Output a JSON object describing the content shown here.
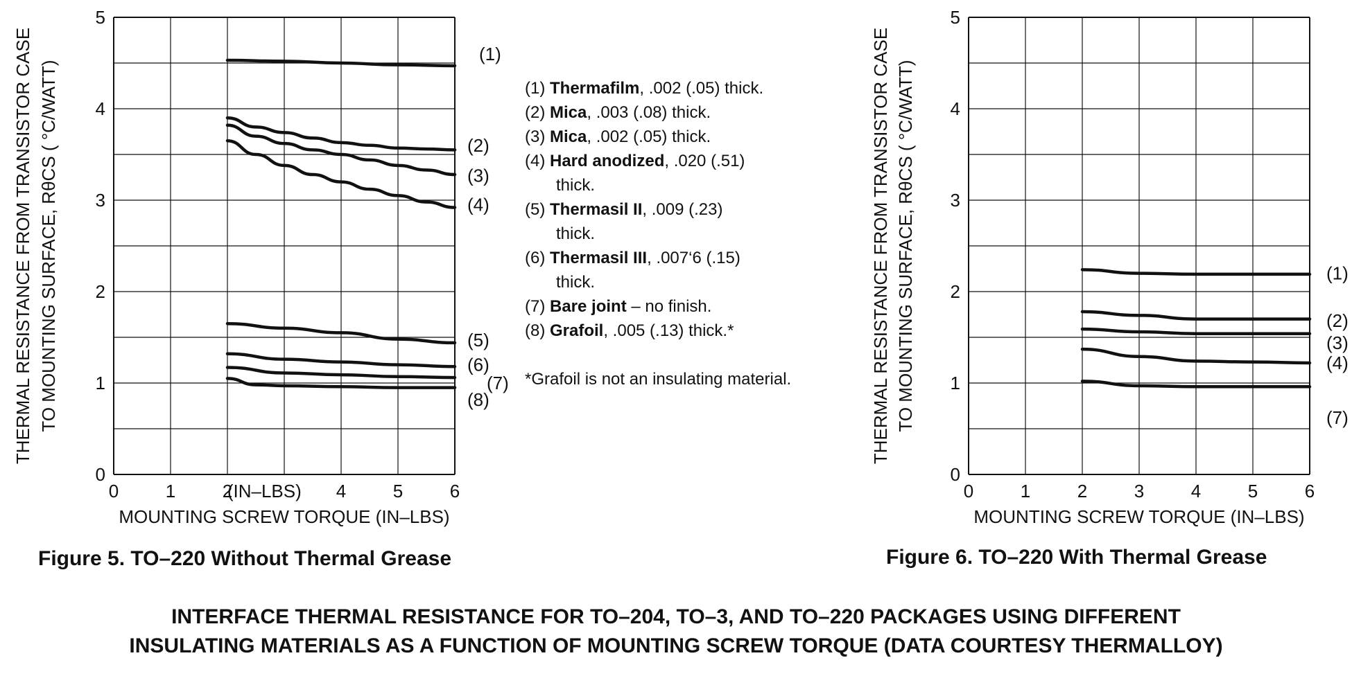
{
  "chart_data": [
    {
      "type": "line",
      "title": "Figure 5. TO–220 Without Thermal Grease",
      "xlabel": "MOUNTING SCREW TORQUE (IN–LBS)",
      "ylabel_line1": "THERMAL RESISTANCE FROM TRANSISTOR CASE",
      "ylabel_line2": "TO MOUNTING SURFACE, RθCS  ( °C/WATT)",
      "inner_label": "(IN–LBS)",
      "xlim": [
        0,
        6
      ],
      "ylim": [
        0,
        5
      ],
      "xticks": [
        "0",
        "1",
        "2",
        "",
        "4",
        "5",
        "6"
      ],
      "yticks": [
        "0",
        "1",
        "2",
        "3",
        "4",
        "5"
      ],
      "grid": true,
      "series": [
        {
          "name": "(1)",
          "x": [
            2,
            3,
            4,
            5,
            6
          ],
          "y": [
            4.53,
            4.52,
            4.5,
            4.48,
            4.47
          ]
        },
        {
          "name": "(2)",
          "x": [
            2,
            2.5,
            3,
            3.5,
            4,
            4.5,
            5,
            5.5,
            6
          ],
          "y": [
            3.9,
            3.8,
            3.74,
            3.68,
            3.63,
            3.6,
            3.57,
            3.56,
            3.55
          ]
        },
        {
          "name": "(3)",
          "x": [
            2,
            2.5,
            3,
            3.5,
            4,
            4.5,
            5,
            5.5,
            6
          ],
          "y": [
            3.82,
            3.7,
            3.62,
            3.55,
            3.5,
            3.44,
            3.38,
            3.33,
            3.28
          ]
        },
        {
          "name": "(4)",
          "x": [
            2,
            2.5,
            3,
            3.5,
            4,
            4.5,
            5,
            5.5,
            6
          ],
          "y": [
            3.65,
            3.5,
            3.38,
            3.28,
            3.2,
            3.12,
            3.05,
            2.98,
            2.92
          ]
        },
        {
          "name": "(5)",
          "x": [
            2,
            3,
            4,
            5,
            6
          ],
          "y": [
            1.65,
            1.6,
            1.55,
            1.48,
            1.44
          ]
        },
        {
          "name": "(6)",
          "x": [
            2,
            3,
            4,
            5,
            6
          ],
          "y": [
            1.32,
            1.26,
            1.23,
            1.2,
            1.18
          ]
        },
        {
          "name": "(7)",
          "x": [
            2,
            3,
            4,
            5,
            6
          ],
          "y": [
            1.17,
            1.11,
            1.09,
            1.07,
            1.06
          ]
        },
        {
          "name": "(8)",
          "x": [
            2,
            2.5,
            3,
            4,
            5,
            6
          ],
          "y": [
            1.05,
            0.98,
            0.97,
            0.96,
            0.95,
            0.95
          ]
        }
      ],
      "series_labels": [
        "(1)",
        "(2)",
        "(3)",
        "(4)",
        "(5)",
        "(6)",
        "(7)",
        "(8)"
      ],
      "label_y": [
        4.6,
        3.6,
        3.27,
        2.95,
        1.47,
        1.2,
        1.0,
        0.82
      ]
    },
    {
      "type": "line",
      "title": "Figure 6. TO–220 With Thermal Grease",
      "xlabel": "MOUNTING SCREW TORQUE (IN–LBS)",
      "ylabel_line1": "THERMAL RESISTANCE FROM TRANSISTOR CASE",
      "ylabel_line2": "TO MOUNTING SURFACE, RθCS  ( °C/WATT)",
      "xlim": [
        0,
        6
      ],
      "ylim": [
        0,
        5
      ],
      "xticks": [
        "0",
        "1",
        "2",
        "3",
        "4",
        "5",
        "6"
      ],
      "yticks": [
        "0",
        "1",
        "2",
        "3",
        "4",
        "5"
      ],
      "grid": true,
      "series": [
        {
          "name": "(1)",
          "x": [
            2,
            3,
            4,
            5,
            6
          ],
          "y": [
            2.24,
            2.2,
            2.19,
            2.19,
            2.19
          ]
        },
        {
          "name": "(2)",
          "x": [
            2,
            3,
            4,
            5,
            6
          ],
          "y": [
            1.78,
            1.74,
            1.7,
            1.7,
            1.7
          ]
        },
        {
          "name": "(3)",
          "x": [
            2,
            3,
            4,
            5,
            6
          ],
          "y": [
            1.59,
            1.56,
            1.54,
            1.54,
            1.54
          ]
        },
        {
          "name": "(4)",
          "x": [
            2,
            3,
            4,
            5,
            6
          ],
          "y": [
            1.37,
            1.29,
            1.24,
            1.23,
            1.22
          ]
        },
        {
          "name": "(7)",
          "x": [
            2,
            3,
            4,
            5,
            6
          ],
          "y": [
            1.02,
            0.97,
            0.96,
            0.96,
            0.96
          ]
        }
      ],
      "series_labels": [
        "(1)",
        "(2)",
        "(3)",
        "(4)",
        "(7)"
      ],
      "label_y": [
        2.2,
        1.68,
        1.44,
        1.22,
        0.62
      ]
    }
  ],
  "legend": {
    "items": [
      {
        "num": "(1)",
        "name": "Thermafilm",
        "desc": ", .002 (.05) thick.",
        "cont": ""
      },
      {
        "num": "(2)",
        "name": "Mica",
        "desc": ", .003 (.08) thick.",
        "cont": ""
      },
      {
        "num": "(3)",
        "name": "Mica",
        "desc": ", .002 (.05) thick.",
        "cont": ""
      },
      {
        "num": "(4)",
        "name": "Hard anodized",
        "desc": ", .020 (.51)",
        "cont": "thick."
      },
      {
        "num": "(5)",
        "name": "Thermasil II",
        "desc": ", .009 (.23)",
        "cont": "thick."
      },
      {
        "num": "(6)",
        "name": "Thermasil III",
        "desc": ", .007‘6 (.15)",
        "cont": "thick."
      },
      {
        "num": "(7)",
        "name": "Bare joint",
        "desc": " – no finish.",
        "cont": ""
      },
      {
        "num": "(8)",
        "name": "Grafoil",
        "desc": ", .005 (.13) thick.*",
        "cont": ""
      }
    ],
    "footnote": "*Grafoil is not an insulating material."
  },
  "main_title": {
    "line1": "INTERFACE THERMAL RESISTANCE FOR TO–204, TO–3, AND TO–220 PACKAGES USING DIFFERENT",
    "line2": "INSULATING MATERIALS AS A FUNCTION OF MOUNTING SCREW TORQUE (DATA COURTESY THERMALLOY)"
  }
}
